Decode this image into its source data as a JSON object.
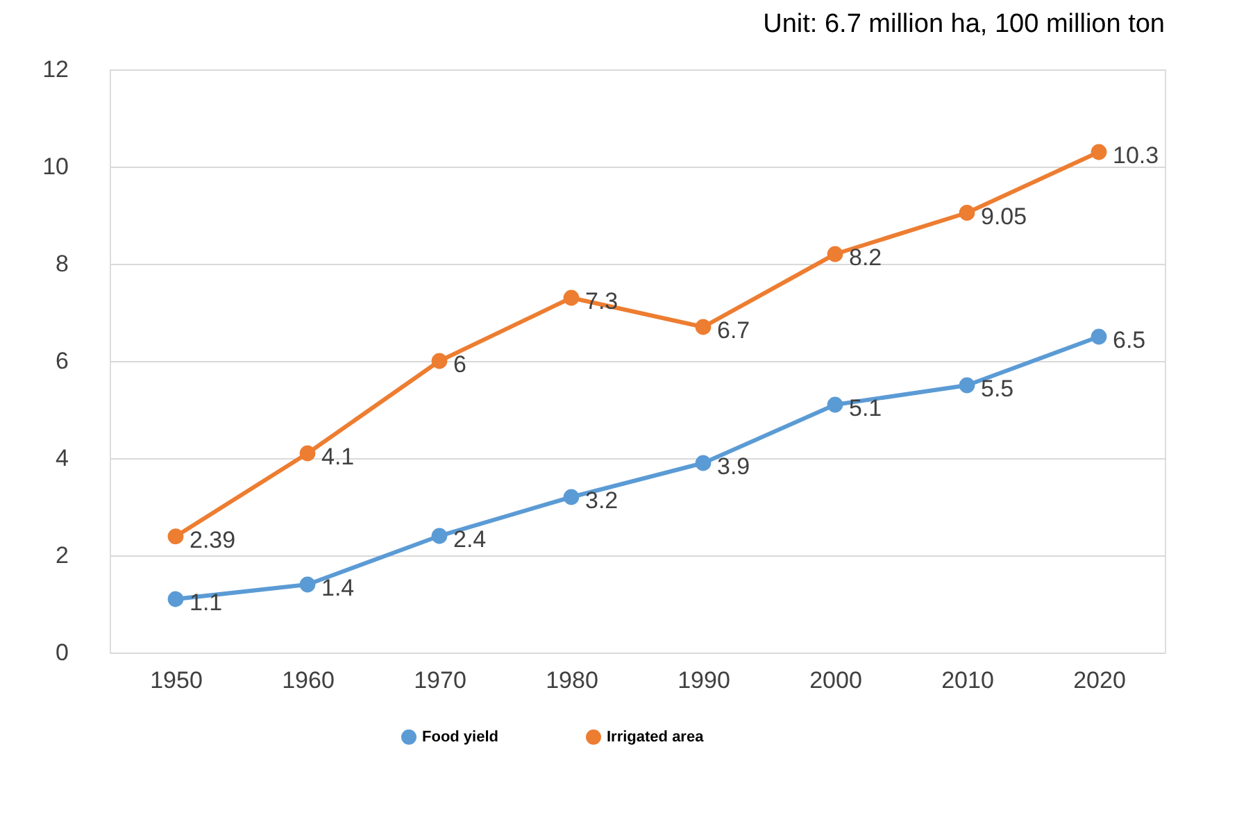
{
  "chart_data": {
    "type": "line",
    "title": "Unit: 6.7 million ha, 100 million ton",
    "categories": [
      "1950",
      "1960",
      "1970",
      "1980",
      "1990",
      "2000",
      "2010",
      "2020"
    ],
    "series": [
      {
        "name": "Food yield",
        "color": "#5b9bd5",
        "values": [
          1.1,
          1.4,
          2.4,
          3.2,
          3.9,
          5.1,
          5.5,
          6.5
        ]
      },
      {
        "name": "Irrigated area",
        "color": "#ed7d31",
        "values": [
          2.39,
          4.1,
          6,
          7.3,
          6.7,
          8.2,
          9.05,
          10.3
        ]
      }
    ],
    "ylim": [
      0,
      12
    ],
    "yticks": [
      0,
      2,
      4,
      6,
      8,
      10,
      12
    ],
    "grid": "y",
    "legend": "bottom",
    "marker": "circle",
    "line_style": "solid",
    "data_labels": true
  }
}
